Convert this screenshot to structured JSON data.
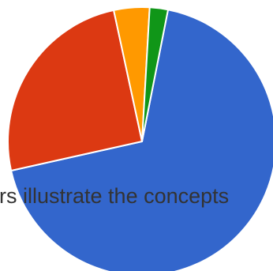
{
  "overlay": {
    "caption": "ers illustrate the concepts"
  },
  "chart_data": {
    "type": "pie",
    "title": "",
    "slices": [
      {
        "label": "",
        "value": 68.4,
        "color": "#3366CC"
      },
      {
        "label": "",
        "value": 25.1,
        "color": "#DC3912"
      },
      {
        "label": "",
        "value": 4.3,
        "color": "#FF9900"
      },
      {
        "label": "",
        "value": 2.2,
        "color": "#109618"
      }
    ],
    "slice_text": [
      "",
      "",
      "",
      ""
    ],
    "legend": "none",
    "border_color": "#ffffff"
  }
}
